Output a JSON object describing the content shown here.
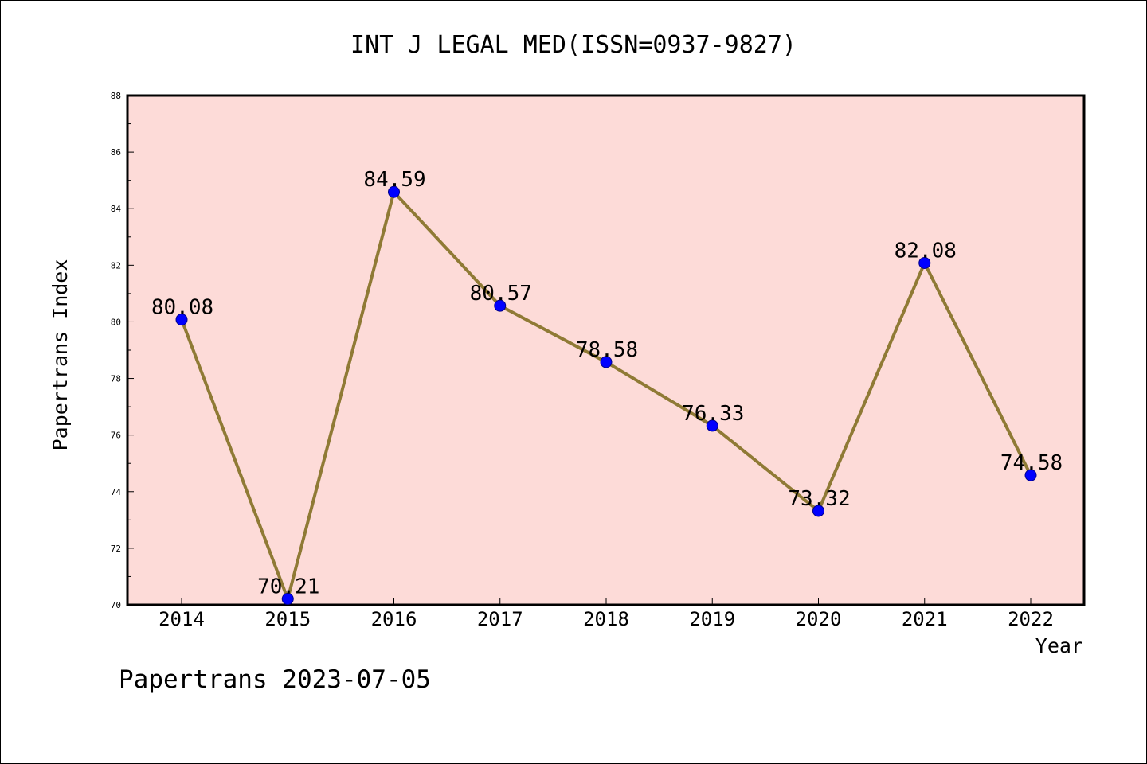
{
  "chart_data": {
    "type": "line",
    "title": "INT J LEGAL MED(ISSN=0937-9827)",
    "xlabel": "Year",
    "ylabel": "Papertrans Index",
    "categories": [
      "2014",
      "2015",
      "2016",
      "2017",
      "2018",
      "2019",
      "2020",
      "2021",
      "2022"
    ],
    "values": [
      80.08,
      70.21,
      84.59,
      80.57,
      78.58,
      76.33,
      73.32,
      82.08,
      74.58
    ],
    "value_labels": [
      "80.08",
      "70.21",
      "84.59",
      "80.57",
      "78.58",
      "76.33",
      "73.32",
      "82.08",
      "74.58"
    ],
    "ylim": [
      70,
      88
    ],
    "yticks": [
      70,
      72,
      74,
      76,
      78,
      80,
      82,
      84,
      86,
      88
    ],
    "grid": false,
    "colors": {
      "plot_background": "#fddbd8",
      "line": "#8f7a35",
      "marker": "#0000ff"
    }
  },
  "footer": {
    "text": "Papertrans 2023-07-05"
  }
}
